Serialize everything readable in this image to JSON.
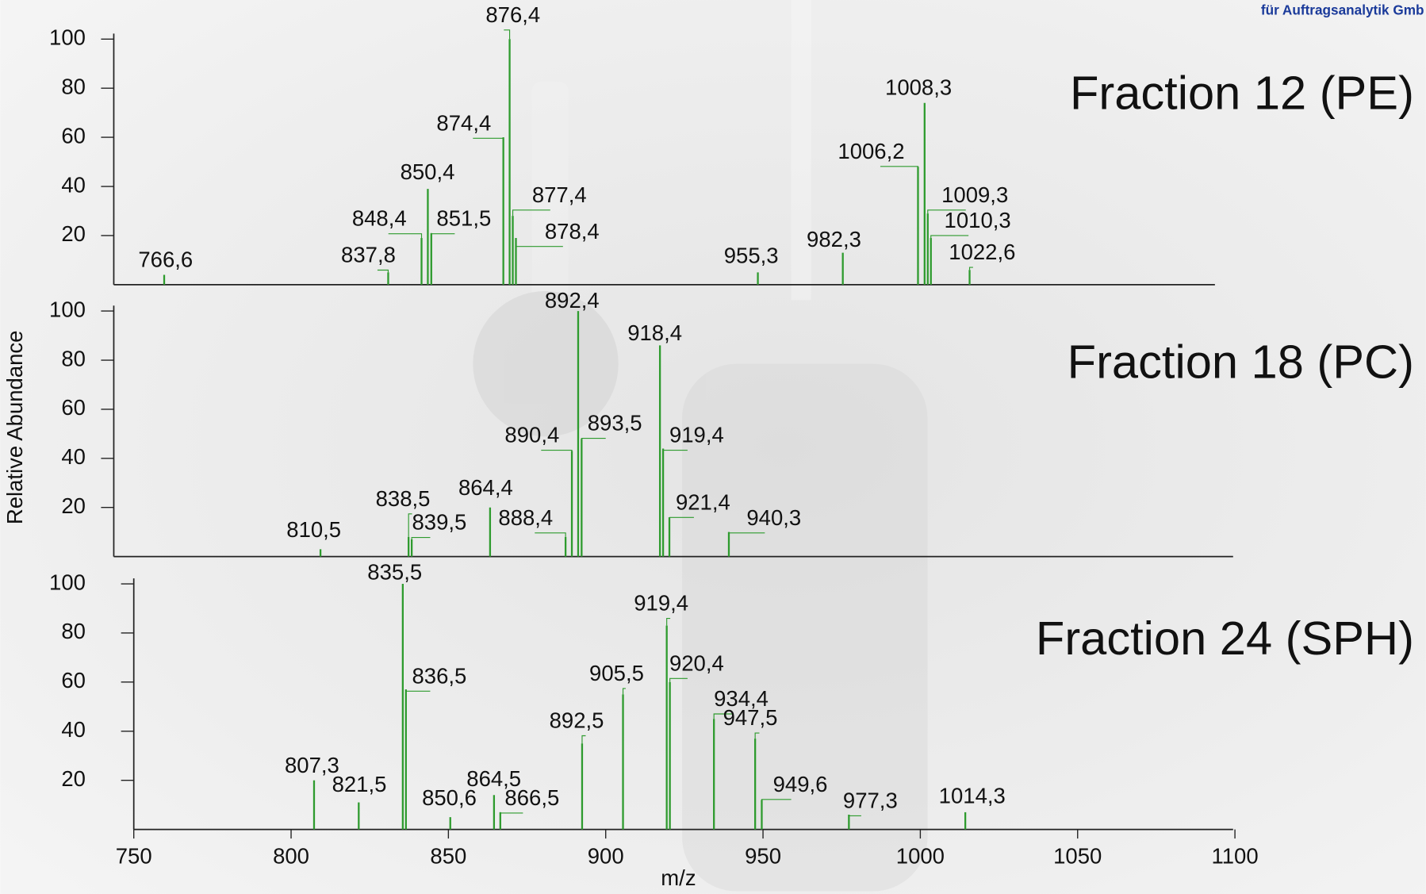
{
  "header": "für Auftragsanalytik Gmb",
  "chart_data": [
    {
      "type": "bar",
      "title": "Fraction 12 (PE)",
      "color": "#2e9b2e",
      "xlim": [
        750,
        1100
      ],
      "ylim": [
        0,
        100
      ],
      "yticks": [
        20,
        40,
        60,
        80,
        100
      ],
      "x": [
        766.6,
        837.8,
        848.4,
        850.4,
        851.5,
        874.4,
        876.4,
        877.4,
        878.4,
        955.3,
        982.3,
        1006.2,
        1008.3,
        1009.3,
        1010.3,
        1022.6
      ],
      "values": [
        4,
        5,
        19,
        39,
        21,
        60,
        100,
        28,
        19,
        5,
        13,
        48,
        74,
        29,
        19,
        6
      ],
      "labels": [
        "766,6",
        "837,8",
        "848,4",
        "850,4",
        "851,5",
        "874,4",
        "876,4",
        "877,4",
        "878,4",
        "955,3",
        "982,3",
        "1006,2",
        "1008,3",
        "1009,3",
        "1010,3",
        "1022,6"
      ]
    },
    {
      "type": "bar",
      "title": "Fraction 18 (PC)",
      "color": "#2e9b2e",
      "ylabel": "Relative Abundance",
      "xlim": [
        750,
        1100
      ],
      "ylim": [
        0,
        100
      ],
      "yticks": [
        20,
        40,
        60,
        80,
        100
      ],
      "x": [
        810.5,
        838.5,
        839.5,
        864.4,
        888.4,
        890.4,
        892.4,
        893.5,
        918.4,
        919.4,
        921.4,
        940.3
      ],
      "values": [
        3,
        8,
        7,
        20,
        8,
        43,
        100,
        48,
        86,
        44,
        16,
        10
      ],
      "labels": [
        "810,5",
        "838,5",
        "839,5",
        "864,4",
        "888,4",
        "890,4",
        "892,4",
        "893,5",
        "918,4",
        "919,4",
        "921,4",
        "940,3"
      ]
    },
    {
      "type": "bar",
      "title": "Fraction 24 (SPH)",
      "color": "#2e9b2e",
      "xlabel": "m/z",
      "xlim": [
        750,
        1100
      ],
      "ylim": [
        0,
        100
      ],
      "yticks": [
        20,
        40,
        60,
        80,
        100
      ],
      "xticks": [
        750,
        800,
        850,
        900,
        950,
        1000,
        1050,
        1100
      ],
      "x": [
        807.3,
        821.5,
        835.5,
        836.5,
        850.6,
        864.5,
        866.5,
        892.5,
        905.5,
        919.4,
        920.4,
        934.4,
        947.5,
        949.6,
        977.3,
        1014.3
      ],
      "values": [
        20,
        11,
        100,
        57,
        5,
        14,
        7,
        35,
        55,
        83,
        60,
        45,
        37,
        12,
        6,
        7
      ],
      "labels": [
        "807,3",
        "821,5",
        "835,5",
        "836,5",
        "850,6",
        "864,5",
        "866,5",
        "892,5",
        "905,5",
        "919,4",
        "920,4",
        "934,4",
        "947,5",
        "949,6",
        "977,3",
        "1014,3"
      ]
    }
  ]
}
